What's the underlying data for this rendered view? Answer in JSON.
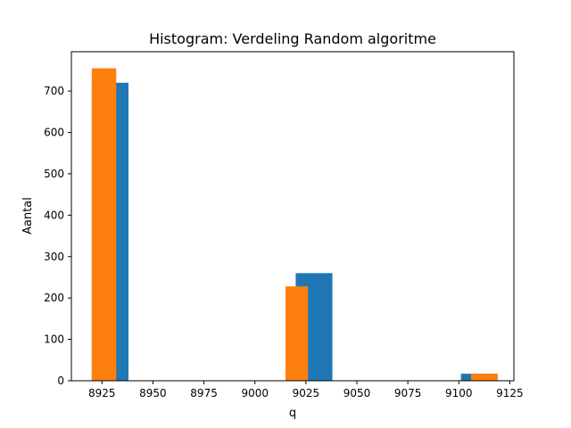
{
  "chart_data": {
    "type": "bar",
    "title": "Histogram: Verdeling Random algoritme",
    "xlabel": "q",
    "ylabel": "Aantal",
    "xlim": [
      8910,
      9127
    ],
    "ylim": [
      0,
      795
    ],
    "xticks": [
      8925,
      8950,
      8975,
      9000,
      9025,
      9050,
      9075,
      9100,
      9125
    ],
    "yticks": [
      0,
      100,
      200,
      300,
      400,
      500,
      600,
      700
    ],
    "grid": false,
    "legend": "none",
    "series": [
      {
        "color": "#1f77b4",
        "bins": [
          {
            "x0": 8920,
            "x1": 8938,
            "value": 720
          },
          {
            "x0": 9020,
            "x1": 9038,
            "value": 260
          },
          {
            "x0": 9101,
            "x1": 9119,
            "value": 17
          }
        ]
      },
      {
        "color": "#ff7f0e",
        "bins": [
          {
            "x0": 8920,
            "x1": 8932,
            "value": 755
          },
          {
            "x0": 9015,
            "x1": 9026,
            "value": 228
          },
          {
            "x0": 9106,
            "x1": 9119,
            "value": 17
          }
        ]
      }
    ]
  }
}
